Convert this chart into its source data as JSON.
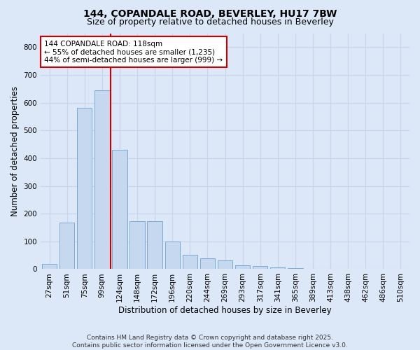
{
  "title": "144, COPANDALE ROAD, BEVERLEY, HU17 7BW",
  "subtitle": "Size of property relative to detached houses in Beverley",
  "xlabel": "Distribution of detached houses by size in Beverley",
  "ylabel": "Number of detached properties",
  "categories": [
    "27sqm",
    "51sqm",
    "75sqm",
    "99sqm",
    "124sqm",
    "148sqm",
    "172sqm",
    "196sqm",
    "220sqm",
    "244sqm",
    "269sqm",
    "293sqm",
    "317sqm",
    "341sqm",
    "365sqm",
    "389sqm",
    "413sqm",
    "438sqm",
    "462sqm",
    "486sqm",
    "510sqm"
  ],
  "values": [
    20,
    168,
    582,
    645,
    430,
    172,
    172,
    100,
    52,
    38,
    32,
    14,
    10,
    5,
    3,
    2,
    2,
    1,
    1,
    0,
    2
  ],
  "bar_color": "#c5d8f0",
  "bar_edge_color": "#7aaad4",
  "vline_color": "#cc0000",
  "annotation_line1": "144 COPANDALE ROAD: 118sqm",
  "annotation_line2": "← 55% of detached houses are smaller (1,235)",
  "annotation_line3": "44% of semi-detached houses are larger (999) →",
  "annotation_box_facecolor": "#ffffff",
  "annotation_box_edgecolor": "#cc0000",
  "ylim": [
    0,
    850
  ],
  "yticks": [
    0,
    100,
    200,
    300,
    400,
    500,
    600,
    700,
    800
  ],
  "grid_color": "#c8d4e8",
  "background_color": "#dce8f8",
  "plot_bg_color": "#dce8f8",
  "footer_line1": "Contains HM Land Registry data © Crown copyright and database right 2025.",
  "footer_line2": "Contains public sector information licensed under the Open Government Licence v3.0.",
  "title_fontsize": 10,
  "subtitle_fontsize": 9,
  "axis_label_fontsize": 8.5,
  "tick_fontsize": 7.5,
  "annotation_fontsize": 7.5,
  "footer_fontsize": 6.5,
  "vline_index": 4
}
